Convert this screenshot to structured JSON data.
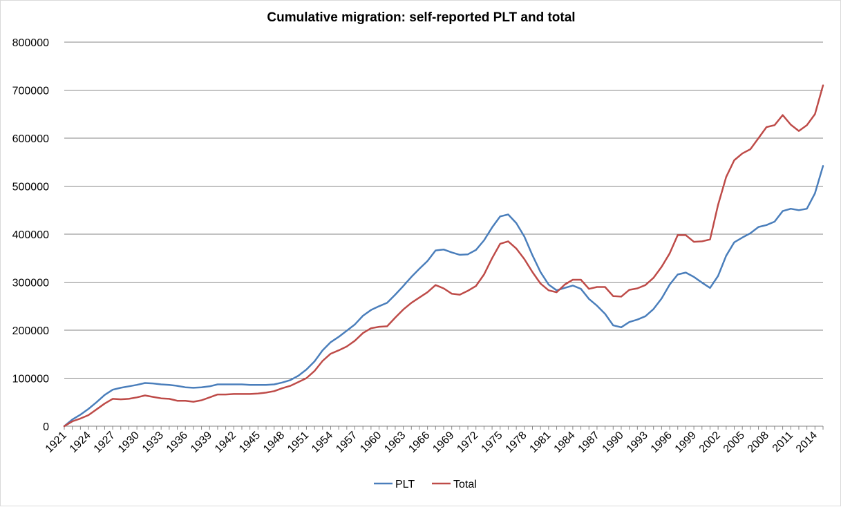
{
  "chart_data": {
    "type": "line",
    "title": "Cumulative migration: self-reported PLT and total",
    "xlabel": "",
    "ylabel": "",
    "ylim": [
      0,
      800000
    ],
    "yticks": [
      0,
      100000,
      200000,
      300000,
      400000,
      500000,
      600000,
      700000,
      800000
    ],
    "ytick_labels": [
      "0",
      "100000",
      "200000",
      "300000",
      "400000",
      "500000",
      "600000",
      "700000",
      "800000"
    ],
    "xlim": [
      1921,
      2015
    ],
    "xticks": [
      1921,
      1924,
      1927,
      1930,
      1933,
      1936,
      1939,
      1942,
      1945,
      1948,
      1951,
      1954,
      1957,
      1960,
      1963,
      1966,
      1969,
      1972,
      1975,
      1978,
      1981,
      1984,
      1987,
      1990,
      1993,
      1996,
      1999,
      2002,
      2005,
      2008,
      2011,
      2014
    ],
    "xtick_labels": [
      "1921",
      "1924",
      "1927",
      "1930",
      "1933",
      "1936",
      "1939",
      "1942",
      "1945",
      "1948",
      "1951",
      "1954",
      "1957",
      "1960",
      "1963",
      "1966",
      "1969",
      "1972",
      "1975",
      "1978",
      "1981",
      "1984",
      "1987",
      "1990",
      "1993",
      "1996",
      "1999",
      "2002",
      "2005",
      "2008",
      "2011",
      "2014"
    ],
    "grid": "horizontal",
    "legend": "bottom-center",
    "x": [
      1921,
      1922,
      1923,
      1924,
      1925,
      1926,
      1927,
      1928,
      1929,
      1930,
      1931,
      1932,
      1933,
      1934,
      1935,
      1936,
      1937,
      1938,
      1939,
      1940,
      1941,
      1942,
      1943,
      1944,
      1945,
      1946,
      1947,
      1948,
      1949,
      1950,
      1951,
      1952,
      1953,
      1954,
      1955,
      1956,
      1957,
      1958,
      1959,
      1960,
      1961,
      1962,
      1963,
      1964,
      1965,
      1966,
      1967,
      1968,
      1969,
      1970,
      1971,
      1972,
      1973,
      1974,
      1975,
      1976,
      1977,
      1978,
      1979,
      1980,
      1981,
      1982,
      1983,
      1984,
      1985,
      1986,
      1987,
      1988,
      1989,
      1990,
      1991,
      1992,
      1993,
      1994,
      1995,
      1996,
      1997,
      1998,
      1999,
      2000,
      2001,
      2002,
      2003,
      2004,
      2005,
      2006,
      2007,
      2008,
      2009,
      2010,
      2011,
      2012,
      2013,
      2014,
      2015
    ],
    "series": [
      {
        "name": "PLT",
        "color": "#4a7ebb",
        "values": [
          0,
          14000,
          24000,
          36000,
          50000,
          65000,
          76000,
          80000,
          83000,
          86000,
          90000,
          89000,
          87000,
          86000,
          84000,
          81000,
          80000,
          81000,
          83000,
          87000,
          87000,
          87000,
          87000,
          86000,
          86000,
          86000,
          87000,
          91000,
          96000,
          105000,
          118000,
          135000,
          158000,
          175000,
          186000,
          199000,
          212000,
          230000,
          242000,
          250000,
          257000,
          274000,
          292000,
          311000,
          328000,
          344000,
          366000,
          368000,
          362000,
          357000,
          358000,
          367000,
          387000,
          414000,
          437000,
          441000,
          423000,
          395000,
          356000,
          321000,
          295000,
          283000,
          288000,
          293000,
          286000,
          265000,
          251000,
          234000,
          210000,
          206000,
          217000,
          222000,
          229000,
          244000,
          266000,
          295000,
          316000,
          320000,
          311000,
          299000,
          288000,
          313000,
          355000,
          383000,
          393000,
          402000,
          415000,
          419000,
          426000,
          448000,
          453000,
          450000,
          453000,
          485000,
          542000
        ]
      },
      {
        "name": "Total",
        "color": "#be4b48",
        "values": [
          0,
          10000,
          16000,
          23000,
          35000,
          47000,
          57000,
          56000,
          57000,
          60000,
          64000,
          61000,
          58000,
          57000,
          53000,
          53000,
          51000,
          54000,
          60000,
          66000,
          66000,
          67000,
          67000,
          67000,
          68000,
          70000,
          73000,
          79000,
          84000,
          92000,
          100000,
          115000,
          136000,
          151000,
          158000,
          166000,
          178000,
          194000,
          204000,
          207000,
          208000,
          226000,
          243000,
          257000,
          268000,
          279000,
          294000,
          287000,
          276000,
          274000,
          282000,
          292000,
          316000,
          350000,
          380000,
          385000,
          370000,
          348000,
          321000,
          297000,
          283000,
          279000,
          295000,
          305000,
          305000,
          286000,
          290000,
          290000,
          271000,
          270000,
          284000,
          287000,
          294000,
          309000,
          332000,
          360000,
          398000,
          398000,
          384000,
          385000,
          389000,
          461000,
          519000,
          554000,
          568000,
          577000,
          600000,
          623000,
          627000,
          648000,
          628000,
          615000,
          627000,
          650000,
          710000
        ]
      }
    ]
  }
}
